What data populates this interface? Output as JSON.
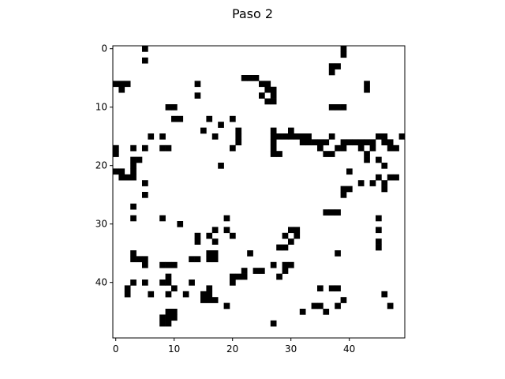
{
  "chart_data": {
    "type": "heatmap",
    "title": "Paso 2",
    "colormap": {
      "0": "#ffffff",
      "1": "#000000"
    },
    "grid": false,
    "xlim": [
      -0.5,
      49.5
    ],
    "ylim": [
      -0.5,
      49.5
    ],
    "x_ticks": [
      0,
      10,
      20,
      30,
      40
    ],
    "y_ticks": [
      0,
      10,
      20,
      30,
      40
    ],
    "rows": 50,
    "cols": 50,
    "live_cells": [
      [
        0,
        5
      ],
      [
        0,
        39
      ],
      [
        1,
        39
      ],
      [
        2,
        5
      ],
      [
        3,
        37
      ],
      [
        3,
        38
      ],
      [
        4,
        37
      ],
      [
        5,
        22
      ],
      [
        5,
        23
      ],
      [
        5,
        24
      ],
      [
        6,
        0
      ],
      [
        6,
        1
      ],
      [
        6,
        2
      ],
      [
        6,
        14
      ],
      [
        6,
        25
      ],
      [
        6,
        26
      ],
      [
        6,
        43
      ],
      [
        7,
        1
      ],
      [
        7,
        26
      ],
      [
        7,
        27
      ],
      [
        7,
        43
      ],
      [
        8,
        14
      ],
      [
        8,
        25
      ],
      [
        8,
        27
      ],
      [
        9,
        26
      ],
      [
        9,
        27
      ],
      [
        10,
        9
      ],
      [
        10,
        10
      ],
      [
        10,
        37
      ],
      [
        10,
        38
      ],
      [
        10,
        39
      ],
      [
        12,
        10
      ],
      [
        12,
        11
      ],
      [
        12,
        16
      ],
      [
        12,
        20
      ],
      [
        13,
        18
      ],
      [
        14,
        15
      ],
      [
        14,
        21
      ],
      [
        14,
        27
      ],
      [
        14,
        30
      ],
      [
        15,
        6
      ],
      [
        15,
        8
      ],
      [
        15,
        17
      ],
      [
        15,
        21
      ],
      [
        15,
        27
      ],
      [
        15,
        28
      ],
      [
        15,
        29
      ],
      [
        15,
        30
      ],
      [
        15,
        31
      ],
      [
        15,
        32
      ],
      [
        15,
        33
      ],
      [
        15,
        37
      ],
      [
        15,
        45
      ],
      [
        15,
        46
      ],
      [
        15,
        49
      ],
      [
        16,
        21
      ],
      [
        16,
        27
      ],
      [
        16,
        32
      ],
      [
        16,
        33
      ],
      [
        16,
        34
      ],
      [
        16,
        35
      ],
      [
        16,
        36
      ],
      [
        16,
        39
      ],
      [
        16,
        40
      ],
      [
        16,
        41
      ],
      [
        16,
        42
      ],
      [
        16,
        43
      ],
      [
        16,
        44
      ],
      [
        16,
        46
      ],
      [
        16,
        47
      ],
      [
        17,
        0
      ],
      [
        17,
        3
      ],
      [
        17,
        5
      ],
      [
        17,
        8
      ],
      [
        17,
        9
      ],
      [
        17,
        20
      ],
      [
        17,
        27
      ],
      [
        17,
        35
      ],
      [
        17,
        38
      ],
      [
        17,
        39
      ],
      [
        17,
        42
      ],
      [
        17,
        44
      ],
      [
        17,
        47
      ],
      [
        17,
        48
      ],
      [
        18,
        0
      ],
      [
        18,
        27
      ],
      [
        18,
        28
      ],
      [
        18,
        36
      ],
      [
        18,
        37
      ],
      [
        18,
        43
      ],
      [
        19,
        3
      ],
      [
        19,
        4
      ],
      [
        19,
        43
      ],
      [
        19,
        45
      ],
      [
        20,
        3
      ],
      [
        20,
        18
      ],
      [
        20,
        46
      ],
      [
        21,
        0
      ],
      [
        21,
        1
      ],
      [
        21,
        3
      ],
      [
        21,
        40
      ],
      [
        22,
        1
      ],
      [
        22,
        2
      ],
      [
        22,
        3
      ],
      [
        22,
        45
      ],
      [
        22,
        47
      ],
      [
        22,
        48
      ],
      [
        23,
        5
      ],
      [
        23,
        42
      ],
      [
        23,
        44
      ],
      [
        23,
        46
      ],
      [
        24,
        39
      ],
      [
        24,
        40
      ],
      [
        24,
        46
      ],
      [
        25,
        5
      ],
      [
        25,
        39
      ],
      [
        27,
        3
      ],
      [
        28,
        36
      ],
      [
        28,
        37
      ],
      [
        28,
        38
      ],
      [
        29,
        3
      ],
      [
        29,
        8
      ],
      [
        29,
        19
      ],
      [
        29,
        45
      ],
      [
        30,
        11
      ],
      [
        31,
        17
      ],
      [
        31,
        19
      ],
      [
        31,
        30
      ],
      [
        31,
        31
      ],
      [
        31,
        45
      ],
      [
        32,
        14
      ],
      [
        32,
        16
      ],
      [
        32,
        20
      ],
      [
        32,
        29
      ],
      [
        32,
        31
      ],
      [
        33,
        14
      ],
      [
        33,
        17
      ],
      [
        33,
        30
      ],
      [
        33,
        45
      ],
      [
        34,
        28
      ],
      [
        34,
        29
      ],
      [
        34,
        45
      ],
      [
        35,
        3
      ],
      [
        35,
        16
      ],
      [
        35,
        17
      ],
      [
        35,
        23
      ],
      [
        35,
        38
      ],
      [
        36,
        3
      ],
      [
        36,
        4
      ],
      [
        36,
        5
      ],
      [
        36,
        13
      ],
      [
        36,
        14
      ],
      [
        36,
        16
      ],
      [
        36,
        17
      ],
      [
        37,
        5
      ],
      [
        37,
        8
      ],
      [
        37,
        9
      ],
      [
        37,
        10
      ],
      [
        37,
        27
      ],
      [
        37,
        29
      ],
      [
        37,
        30
      ],
      [
        38,
        22
      ],
      [
        38,
        24
      ],
      [
        38,
        25
      ],
      [
        38,
        29
      ],
      [
        39,
        9
      ],
      [
        39,
        20
      ],
      [
        39,
        21
      ],
      [
        39,
        22
      ],
      [
        39,
        28
      ],
      [
        40,
        3
      ],
      [
        40,
        5
      ],
      [
        40,
        8
      ],
      [
        40,
        9
      ],
      [
        40,
        13
      ],
      [
        40,
        20
      ],
      [
        41,
        2
      ],
      [
        41,
        10
      ],
      [
        41,
        16
      ],
      [
        41,
        35
      ],
      [
        41,
        37
      ],
      [
        41,
        38
      ],
      [
        42,
        2
      ],
      [
        42,
        6
      ],
      [
        42,
        9
      ],
      [
        42,
        12
      ],
      [
        42,
        15
      ],
      [
        42,
        16
      ],
      [
        42,
        46
      ],
      [
        43,
        15
      ],
      [
        43,
        16
      ],
      [
        43,
        17
      ],
      [
        43,
        39
      ],
      [
        44,
        19
      ],
      [
        44,
        34
      ],
      [
        44,
        35
      ],
      [
        44,
        38
      ],
      [
        44,
        47
      ],
      [
        45,
        9
      ],
      [
        45,
        10
      ],
      [
        45,
        32
      ],
      [
        45,
        36
      ],
      [
        46,
        8
      ],
      [
        46,
        9
      ],
      [
        46,
        10
      ],
      [
        47,
        8
      ],
      [
        47,
        9
      ],
      [
        47,
        27
      ]
    ]
  }
}
